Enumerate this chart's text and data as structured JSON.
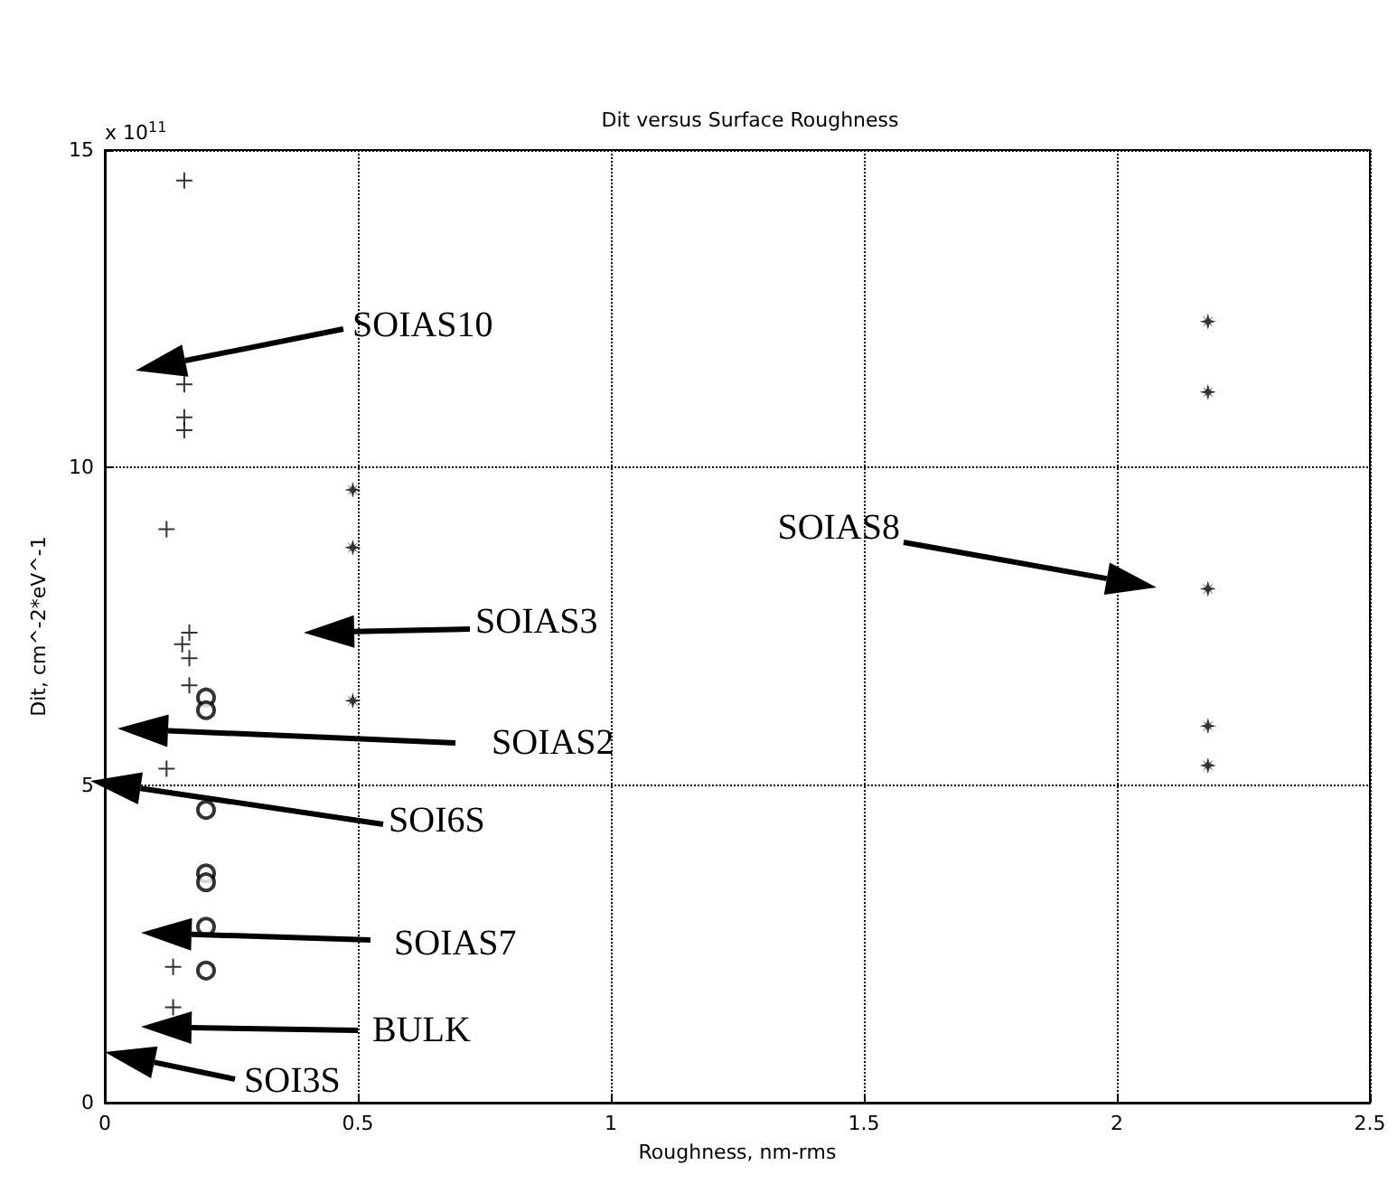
{
  "chart_data": {
    "type": "scatter",
    "title": "Dit versus Surface Roughness",
    "xlabel": "Roughness, nm-rms",
    "ylabel": "Dit, cm^-2*eV^-1",
    "xlim": [
      0,
      2.5
    ],
    "xticks": [
      0,
      0.5,
      1,
      1.5,
      2,
      2.5
    ],
    "ylim": [
      0,
      15
    ],
    "yticks": [
      0,
      5,
      10,
      15
    ],
    "grid": true,
    "series": [
      {
        "color": "#000000",
        "marker": "cross",
        "x": [
          0.157,
          0.157,
          0.157,
          0.157,
          0.153,
          0.135,
          0.135
        ],
        "values": [
          14.52,
          11.31,
          10.79,
          10.59,
          7.22,
          2.14,
          1.5
        ]
      },
      {
        "color": "#000000",
        "marker": "cross",
        "x": [
          0.122,
          0.167,
          0.167,
          0.167,
          0.122
        ],
        "values": [
          9.03,
          7.4,
          7.0,
          6.57,
          5.26
        ]
      },
      {
        "color": "#000000",
        "marker": "star",
        "x": [
          0.49,
          0.49,
          0.49,
          2.18,
          2.18,
          2.18,
          2.18,
          2.18
        ],
        "values": [
          9.65,
          8.74,
          6.33,
          12.3,
          11.19,
          8.09,
          5.93,
          5.31
        ]
      },
      {
        "color": "#000000",
        "marker": "circle",
        "x": [
          0.2,
          0.2,
          0.2,
          0.2,
          0.2,
          0.2,
          0.2
        ],
        "values": [
          6.38,
          6.18,
          4.61,
          3.61,
          3.47,
          2.77,
          2.08
        ]
      }
    ],
    "annotations": [
      "x 10$^{11}$",
      "SOIAS10",
      "SOIAS3",
      "SOIAS2",
      "SOI6S",
      "SOIAS7",
      "BULK",
      "SOI3S",
      "SOIAS8"
    ]
  }
}
